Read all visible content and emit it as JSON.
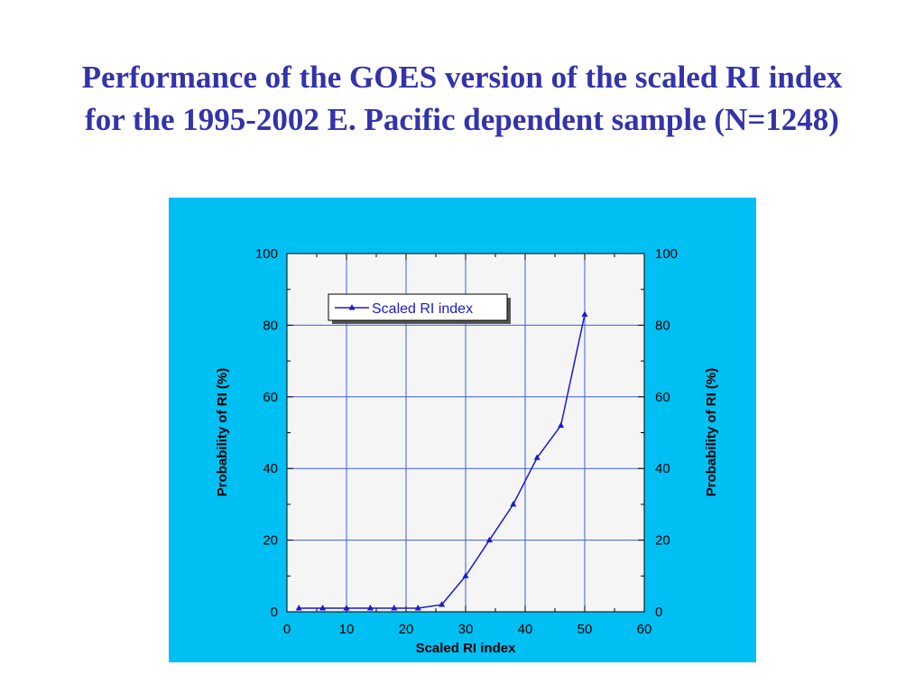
{
  "title": {
    "line1": "Performance of the GOES version of the scaled RI index",
    "line2": "for the 1995-2002 E. Pacific dependent sample (N=1248)"
  },
  "colors": {
    "title": "#3333aa",
    "panel_background": "#00bff3",
    "plot_background": "#f5f5f5",
    "series": "#1a1ad0",
    "grid": "#3c5fd6"
  },
  "chart_data": {
    "type": "line",
    "xlabel": "Scaled RI index",
    "ylabel": "Probability of RI (%)",
    "ylabel_right": "Probability of RI (%)",
    "xlim": [
      0,
      60
    ],
    "ylim": [
      0,
      100
    ],
    "x_ticks": [
      0,
      10,
      20,
      30,
      40,
      50,
      60
    ],
    "y_ticks": [
      0,
      20,
      40,
      60,
      80,
      100
    ],
    "grid": true,
    "legend_position": "top-left",
    "series": [
      {
        "name": "Scaled RI index",
        "marker": "triangle",
        "x": [
          2,
          6,
          10,
          14,
          18,
          22,
          26,
          30,
          34,
          38,
          42,
          46,
          50
        ],
        "y": [
          1,
          1,
          1,
          1,
          1,
          1,
          2,
          10,
          20,
          30,
          43,
          52,
          83
        ]
      }
    ]
  }
}
